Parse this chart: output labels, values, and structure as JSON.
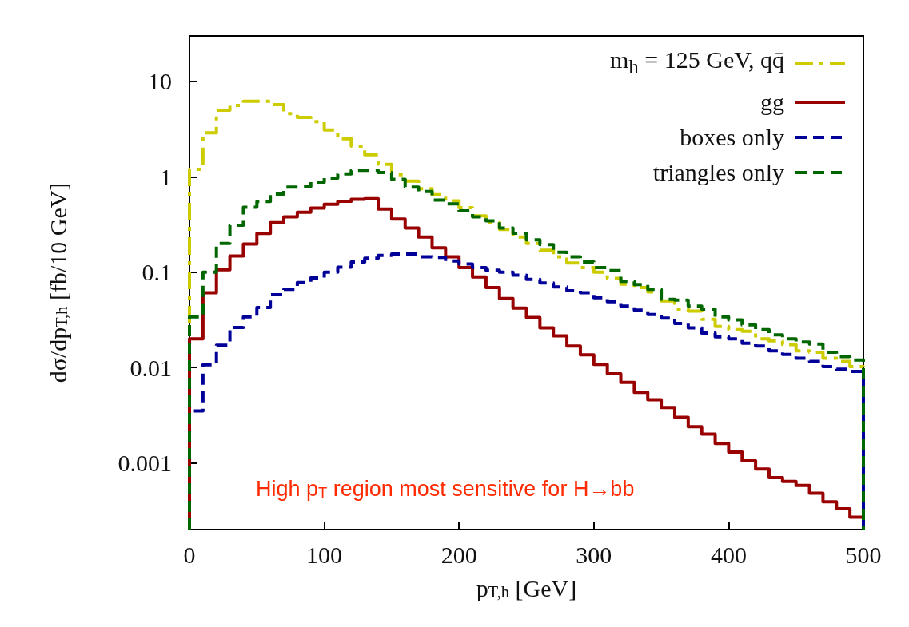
{
  "chart_data": {
    "type": "histogram",
    "xlabel": "p$_{T,h}$ [GeV]",
    "ylabel": "dσ/dp$_{T,h}$ [fb/10 GeV]",
    "bins": [
      0,
      10,
      20,
      30,
      40,
      50,
      60,
      70,
      80,
      90,
      100,
      110,
      120,
      130,
      140,
      150,
      160,
      170,
      180,
      190,
      200,
      210,
      220,
      230,
      240,
      250,
      260,
      270,
      280,
      290,
      300,
      310,
      320,
      330,
      340,
      350,
      360,
      370,
      380,
      390,
      400,
      410,
      420,
      430,
      440,
      450,
      460,
      470,
      480,
      490,
      500
    ],
    "series": [
      {
        "name": "m$_{h}$ = 125 GeV, qq̄",
        "color": "#cccc00",
        "line_style": "dashdot",
        "values": [
          1.2,
          2.9,
          5.0,
          5.6,
          6.2,
          6.2,
          5.7,
          4.6,
          4.2,
          3.8,
          3.1,
          2.5,
          2.1,
          1.7,
          1.35,
          1.05,
          0.9,
          0.75,
          0.65,
          0.56,
          0.475,
          0.39,
          0.33,
          0.28,
          0.234,
          0.2,
          0.17,
          0.145,
          0.125,
          0.112,
          0.1,
          0.086,
          0.075,
          0.069,
          0.062,
          0.05,
          0.041,
          0.039,
          0.032,
          0.027,
          0.025,
          0.024,
          0.02,
          0.019,
          0.0174,
          0.015,
          0.0145,
          0.0125,
          0.0116,
          0.0102
        ]
      },
      {
        "name": "gg",
        "color": "#990000",
        "line_style": "solid",
        "values": [
          0.02,
          0.061,
          0.106,
          0.148,
          0.197,
          0.255,
          0.33,
          0.38,
          0.425,
          0.47,
          0.515,
          0.555,
          0.58,
          0.59,
          0.46,
          0.36,
          0.29,
          0.234,
          0.18,
          0.145,
          0.112,
          0.089,
          0.069,
          0.053,
          0.042,
          0.0335,
          0.026,
          0.0215,
          0.0168,
          0.0136,
          0.0108,
          0.0086,
          0.007,
          0.0055,
          0.0046,
          0.0038,
          0.003,
          0.0024,
          0.002,
          0.0016,
          0.0013,
          0.00105,
          0.00086,
          0.0007,
          0.00064,
          0.00058,
          0.00048,
          0.00039,
          0.00033,
          0.00027
        ]
      },
      {
        "name": "boxes only",
        "color": "#000099",
        "line_style": "dashed",
        "values": [
          0.0035,
          0.0107,
          0.0171,
          0.0263,
          0.034,
          0.0425,
          0.058,
          0.066,
          0.078,
          0.087,
          0.1,
          0.113,
          0.128,
          0.14,
          0.15,
          0.155,
          0.155,
          0.145,
          0.143,
          0.131,
          0.122,
          0.112,
          0.105,
          0.1,
          0.093,
          0.084,
          0.077,
          0.07,
          0.064,
          0.061,
          0.054,
          0.049,
          0.044,
          0.04,
          0.036,
          0.033,
          0.029,
          0.026,
          0.023,
          0.021,
          0.02,
          0.018,
          0.0168,
          0.015,
          0.0137,
          0.0125,
          0.0116,
          0.0102,
          0.0096,
          0.0091
        ]
      },
      {
        "name": "triangles only",
        "color": "#006600",
        "line_style": "dashed",
        "values": [
          0.034,
          0.1,
          0.2,
          0.31,
          0.48,
          0.55,
          0.66,
          0.78,
          0.79,
          0.88,
          0.97,
          1.07,
          1.17,
          1.17,
          1.11,
          0.94,
          0.78,
          0.7,
          0.57,
          0.52,
          0.44,
          0.38,
          0.345,
          0.29,
          0.256,
          0.218,
          0.195,
          0.162,
          0.145,
          0.128,
          0.112,
          0.104,
          0.08,
          0.074,
          0.066,
          0.052,
          0.051,
          0.044,
          0.041,
          0.034,
          0.0316,
          0.028,
          0.025,
          0.022,
          0.02,
          0.0185,
          0.0176,
          0.0145,
          0.013,
          0.012
        ]
      }
    ],
    "log": "y",
    "xlim": [
      0,
      500
    ],
    "xticks": [
      0,
      100,
      200,
      300,
      400,
      500
    ],
    "ylim": [
      0.0002,
      30
    ],
    "yticks": [
      0.001,
      0.01,
      0.1,
      1,
      10
    ],
    "grid": false,
    "legend": "top right",
    "marker": "none",
    "annotations": [
      "High p$_{T}$ region most sensitive for H→bb"
    ]
  }
}
